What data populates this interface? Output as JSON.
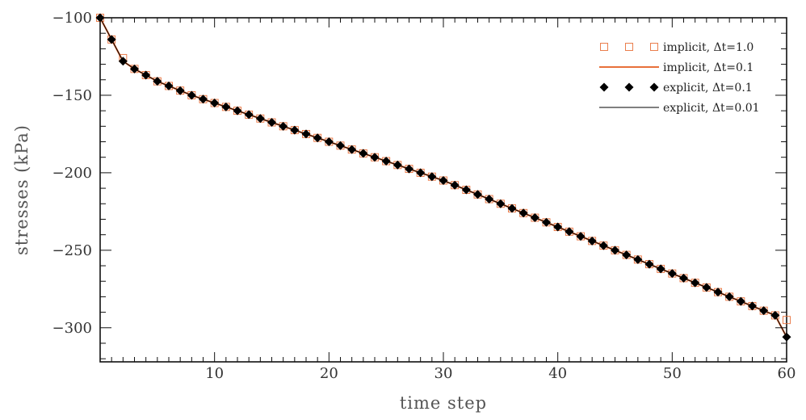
{
  "chart_data": {
    "type": "line",
    "title": "",
    "xlabel": "time step",
    "ylabel": "stresses (kPa)",
    "xlim": [
      0,
      60
    ],
    "ylim": [
      -322,
      -100
    ],
    "x_ticks": [
      10,
      20,
      30,
      40,
      50,
      60
    ],
    "x_tick_labels": [
      "10",
      "20",
      "30",
      "40",
      "50",
      "60"
    ],
    "y_ticks": [
      -100,
      -150,
      -200,
      -250,
      -300
    ],
    "y_tick_labels": [
      "−100",
      "−150",
      "−200",
      "−250",
      "−300"
    ],
    "grid": false,
    "legend_position": "top-right",
    "colors": {
      "implicit": "#e8703a",
      "explicit": "#000000",
      "axis": "#111111"
    },
    "series": [
      {
        "name": "implicit,  Δt=1.0",
        "style": "open-square-markers",
        "color": "#e8703a",
        "x": [
          0,
          1,
          2,
          3,
          4,
          5,
          6,
          7,
          8,
          9,
          10,
          11,
          12,
          13,
          14,
          15,
          16,
          17,
          18,
          19,
          20,
          21,
          22,
          23,
          24,
          25,
          26,
          27,
          28,
          29,
          30,
          31,
          32,
          33,
          34,
          35,
          36,
          37,
          38,
          39,
          40,
          41,
          42,
          43,
          44,
          45,
          46,
          47,
          48,
          49,
          50,
          51,
          52,
          53,
          54,
          55,
          56,
          57,
          58,
          59,
          60
        ],
        "y": [
          -100,
          -114,
          -126,
          -133,
          -137,
          -141,
          -144,
          -147,
          -150,
          -152.5,
          -155,
          -157.5,
          -160,
          -162.5,
          -165,
          -167.5,
          -170,
          -172.5,
          -175,
          -177.5,
          -180,
          -182.5,
          -185,
          -187.5,
          -190,
          -192.5,
          -195,
          -197.5,
          -200,
          -202.5,
          -205,
          -208,
          -211,
          -214,
          -217,
          -220,
          -223,
          -226,
          -229,
          -232,
          -235,
          -238,
          -241,
          -244,
          -247,
          -250,
          -253,
          -256,
          -259,
          -262,
          -265,
          -268,
          -271,
          -274,
          -277,
          -280,
          -283,
          -286,
          -289,
          -292,
          -295
        ]
      },
      {
        "name": "implicit,  Δt=0.1",
        "style": "line",
        "color": "#e8703a",
        "x": [
          0,
          1,
          2,
          3,
          4,
          5,
          6,
          7,
          8,
          9,
          10,
          11,
          12,
          13,
          14,
          15,
          16,
          17,
          18,
          19,
          20,
          21,
          22,
          23,
          24,
          25,
          26,
          27,
          28,
          29,
          30,
          31,
          32,
          33,
          34,
          35,
          36,
          37,
          38,
          39,
          40,
          41,
          42,
          43,
          44,
          45,
          46,
          47,
          48,
          49,
          50,
          51,
          52,
          53,
          54,
          55,
          56,
          57,
          58,
          59,
          60
        ],
        "y": [
          -100,
          -114,
          -128,
          -133,
          -137,
          -141,
          -144,
          -147,
          -150,
          -152.5,
          -155,
          -157.5,
          -160,
          -162.5,
          -165,
          -167.5,
          -170,
          -172.5,
          -175,
          -177.5,
          -180,
          -182.5,
          -185,
          -187.5,
          -190,
          -192.5,
          -195,
          -197.5,
          -200,
          -202.5,
          -205,
          -208,
          -211,
          -214,
          -217,
          -220,
          -223,
          -226,
          -229,
          -232,
          -235,
          -238,
          -241,
          -244,
          -247,
          -250,
          -253,
          -256,
          -259,
          -262,
          -265,
          -268,
          -271,
          -274,
          -277,
          -280,
          -283,
          -286,
          -289,
          -292,
          -306
        ]
      },
      {
        "name": "explicit,  Δt=0.1",
        "style": "filled-diamond-markers",
        "color": "#000000",
        "x": [
          0,
          1,
          2,
          3,
          4,
          5,
          6,
          7,
          8,
          9,
          10,
          11,
          12,
          13,
          14,
          15,
          16,
          17,
          18,
          19,
          20,
          21,
          22,
          23,
          24,
          25,
          26,
          27,
          28,
          29,
          30,
          31,
          32,
          33,
          34,
          35,
          36,
          37,
          38,
          39,
          40,
          41,
          42,
          43,
          44,
          45,
          46,
          47,
          48,
          49,
          50,
          51,
          52,
          53,
          54,
          55,
          56,
          57,
          58,
          59,
          60
        ],
        "y": [
          -100,
          -114,
          -128,
          -133,
          -137,
          -141,
          -144,
          -147,
          -150,
          -152.5,
          -155,
          -157.5,
          -160,
          -162.5,
          -165,
          -167.5,
          -170,
          -172.5,
          -175,
          -177.5,
          -180,
          -182.5,
          -185,
          -187.5,
          -190,
          -192.5,
          -195,
          -197.5,
          -200,
          -202.5,
          -205,
          -208,
          -211,
          -214,
          -217,
          -220,
          -223,
          -226,
          -229,
          -232,
          -235,
          -238,
          -241,
          -244,
          -247,
          -250,
          -253,
          -256,
          -259,
          -262,
          -265,
          -268,
          -271,
          -274,
          -277,
          -280,
          -283,
          -286,
          -289,
          -292,
          -306
        ]
      },
      {
        "name": "explicit,  Δt=0.01",
        "style": "line",
        "color": "#000000",
        "x": [
          0,
          1,
          2,
          3,
          4,
          5,
          6,
          7,
          8,
          9,
          10,
          11,
          12,
          13,
          14,
          15,
          16,
          17,
          18,
          19,
          20,
          21,
          22,
          23,
          24,
          25,
          26,
          27,
          28,
          29,
          30,
          31,
          32,
          33,
          34,
          35,
          36,
          37,
          38,
          39,
          40,
          41,
          42,
          43,
          44,
          45,
          46,
          47,
          48,
          49,
          50,
          51,
          52,
          53,
          54,
          55,
          56,
          57,
          58,
          59,
          60
        ],
        "y": [
          -100,
          -114,
          -128,
          -133,
          -137,
          -141,
          -144,
          -147,
          -150,
          -152.5,
          -155,
          -157.5,
          -160,
          -162.5,
          -165,
          -167.5,
          -170,
          -172.5,
          -175,
          -177.5,
          -180,
          -182.5,
          -185,
          -187.5,
          -190,
          -192.5,
          -195,
          -197.5,
          -200,
          -202.5,
          -205,
          -208,
          -211,
          -214,
          -217,
          -220,
          -223,
          -226,
          -229,
          -232,
          -235,
          -238,
          -241,
          -244,
          -247,
          -250,
          -253,
          -256,
          -259,
          -262,
          -265,
          -268,
          -271,
          -274,
          -277,
          -280,
          -283,
          -286,
          -289,
          -292,
          -306
        ]
      }
    ]
  }
}
